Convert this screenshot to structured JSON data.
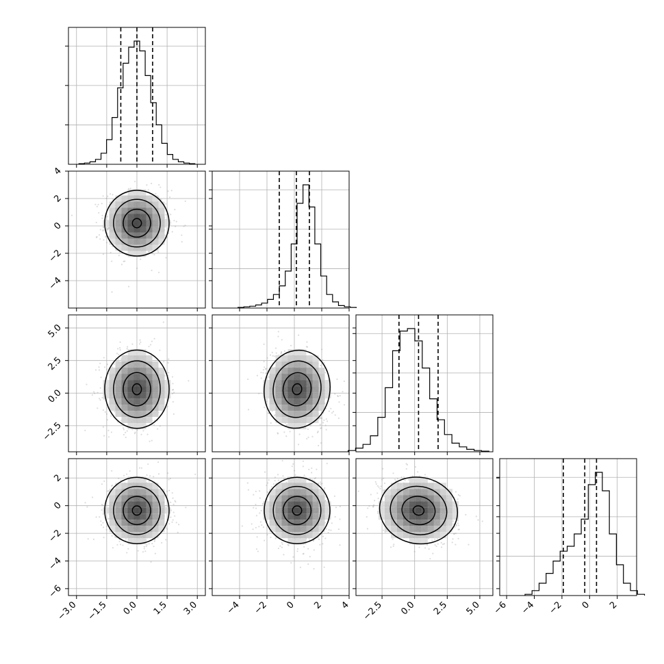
{
  "chart_data": {
    "type": "corner",
    "grid": true,
    "parameters": [
      {
        "range": [
          -3.4,
          3.4
        ],
        "ticks": [
          -3.0,
          -1.5,
          0.0,
          1.5,
          3.0
        ],
        "tick_labels": [
          "−3.0",
          "−1.5",
          "0.0",
          "1.5",
          "3.0"
        ],
        "quantiles": [
          -0.8,
          0.0,
          0.78
        ],
        "mean": 0.0,
        "sd": 0.8
      },
      {
        "range": [
          -6.0,
          4.0
        ],
        "ticks": [
          -4,
          -2,
          0,
          2,
          4
        ],
        "tick_labels": [
          "−4",
          "−2",
          "0",
          "2",
          "4"
        ],
        "quantiles": [
          -1.1,
          0.15,
          1.1
        ],
        "mean": 0.2,
        "sd": 1.2
      },
      {
        "range": [
          -4.5,
          6.0
        ],
        "ticks": [
          -2.5,
          0.0,
          2.5,
          5.0
        ],
        "tick_labels": [
          "−2.5",
          "0.0",
          "2.5",
          "5.0"
        ],
        "quantiles": [
          -1.2,
          0.3,
          1.8
        ],
        "mean": 0.3,
        "sd": 1.5
      },
      {
        "range": [
          -6.5,
          3.4
        ],
        "ticks": [
          -6,
          -4,
          -2,
          0,
          2
        ],
        "tick_labels": [
          "−6",
          "−4",
          "−2",
          "0",
          "2"
        ],
        "quantiles": [
          -1.9,
          -0.35,
          0.5
        ],
        "mean": -0.35,
        "sd": 1.2
      }
    ],
    "diagonal_hist_y_ticks": 3,
    "histograms": [
      [
        0.005,
        0.01,
        0.02,
        0.04,
        0.09,
        0.2,
        0.38,
        0.62,
        0.82,
        0.95,
        1.0,
        0.92,
        0.72,
        0.5,
        0.32,
        0.17,
        0.08,
        0.04,
        0.02,
        0.01,
        0.005
      ],
      [
        0.005,
        0.01,
        0.015,
        0.025,
        0.04,
        0.07,
        0.11,
        0.18,
        0.3,
        0.52,
        0.85,
        1.0,
        0.82,
        0.52,
        0.26,
        0.11,
        0.05,
        0.02,
        0.01,
        0.005
      ],
      [
        0.01,
        0.03,
        0.06,
        0.13,
        0.28,
        0.52,
        0.82,
        0.98,
        1.0,
        0.9,
        0.68,
        0.43,
        0.26,
        0.14,
        0.07,
        0.04,
        0.02,
        0.01,
        0.005
      ],
      [
        0.01,
        0.04,
        0.1,
        0.18,
        0.28,
        0.36,
        0.4,
        0.5,
        0.62,
        0.9,
        1.0,
        0.85,
        0.5,
        0.25,
        0.1,
        0.04,
        0.01
      ]
    ]
  }
}
